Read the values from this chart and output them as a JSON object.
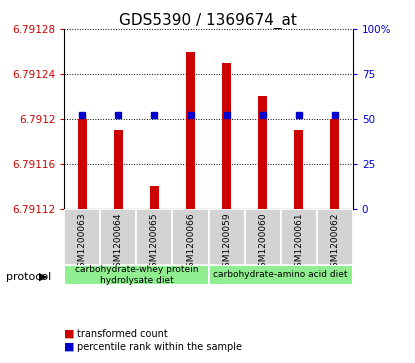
{
  "title": "GDS5390 / 1369674_at",
  "samples": [
    "GSM1200063",
    "GSM1200064",
    "GSM1200065",
    "GSM1200066",
    "GSM1200059",
    "GSM1200060",
    "GSM1200061",
    "GSM1200062"
  ],
  "transformed_counts": [
    6.7912,
    6.79119,
    6.79114,
    6.79126,
    6.79125,
    6.79122,
    6.79119,
    6.7912
  ],
  "percentile_ranks": [
    52,
    52,
    52,
    52,
    52,
    52,
    52,
    52
  ],
  "ylim_left": [
    6.79112,
    6.79128
  ],
  "ylim_right": [
    0,
    100
  ],
  "yticks_left": [
    6.79112,
    6.79116,
    6.7912,
    6.79124,
    6.79128
  ],
  "yticks_right": [
    0,
    25,
    50,
    75,
    100
  ],
  "ytick_labels_left": [
    "6.79112",
    "6.79116",
    "6.7912",
    "6.79124",
    "6.79128"
  ],
  "ytick_labels_right": [
    "0",
    "25",
    "50",
    "75",
    "100%"
  ],
  "bar_color": "#cc0000",
  "blue_color": "#0000cc",
  "protocol_groups": [
    {
      "label": "carbohydrate-whey protein\nhydrolysate diet",
      "start": 0,
      "end": 4,
      "color": "#90ee90"
    },
    {
      "label": "carbohydrate-amino acid diet",
      "start": 4,
      "end": 8,
      "color": "#90ee90"
    }
  ],
  "protocol_label": "protocol",
  "legend_items": [
    {
      "color": "#cc0000",
      "label": "transformed count"
    },
    {
      "color": "#0000cc",
      "label": "percentile rank within the sample"
    }
  ],
  "background_plot": "#ffffff",
  "background_xtick": "#d3d3d3",
  "title_fontsize": 11,
  "tick_fontsize": 7.5,
  "bar_width": 0.25
}
